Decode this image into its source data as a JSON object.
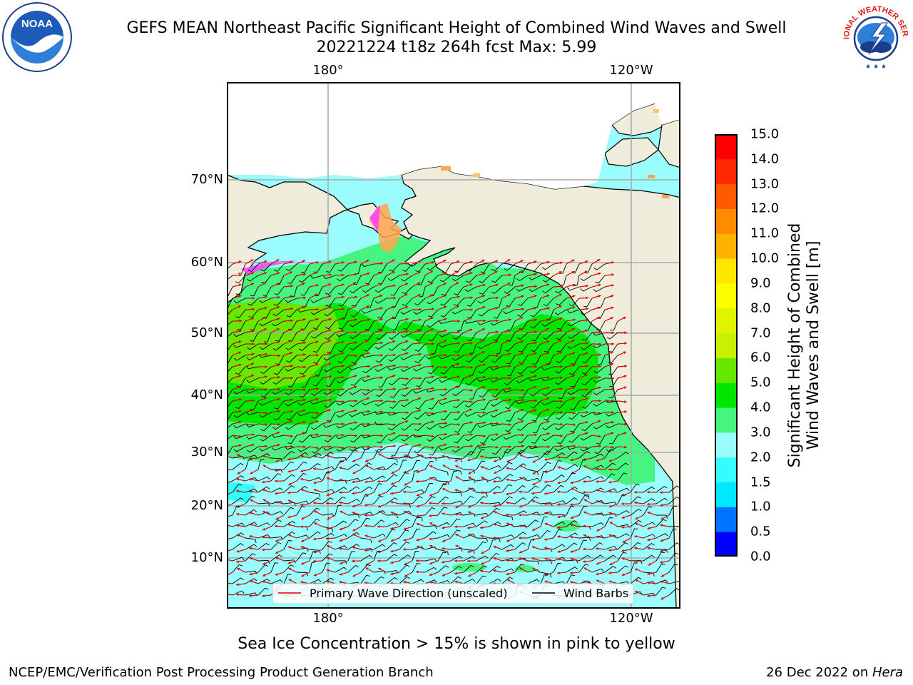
{
  "header": {
    "title_line1": "GEFS MEAN Northeast Pacific Significant Height of Combined Wind Waves and Swell",
    "title_line2": "20221224 t18z 264h fcst   Max: 5.99"
  },
  "logos": {
    "noaa": {
      "icon": "noaa-logo",
      "text": "NOAA"
    },
    "nws": {
      "icon": "nws-logo",
      "text": "NATIONAL WEATHER SERVICE"
    }
  },
  "map": {
    "lon_labels_top": [
      "180°",
      "120°W"
    ],
    "lon_labels_bottom": [
      "180°",
      "120°W"
    ],
    "lat_labels": [
      "70°N",
      "60°N",
      "50°N",
      "40°N",
      "30°N",
      "20°N",
      "10°N"
    ],
    "legend": {
      "wave_label": "Primary Wave Direction (unscaled)",
      "barb_label": "Wind Barbs",
      "wave_color": "#e00000",
      "barb_color": "#000000"
    },
    "land_color": "#efecdc"
  },
  "colorbar": {
    "label_line1": "Significant Height of Combined",
    "label_line2": "Wind Waves and Swell [m]",
    "ticks": [
      "0.0",
      "0.5",
      "1.0",
      "1.5",
      "2.0",
      "3.0",
      "4.0",
      "5.0",
      "6.0",
      "7.0",
      "8.0",
      "9.0",
      "10.0",
      "11.0",
      "12.0",
      "13.0",
      "14.0",
      "15.0"
    ],
    "colors": [
      "#0000ff",
      "#0073ff",
      "#00e8ff",
      "#35fdfd",
      "#9afcfc",
      "#46f57f",
      "#00e600",
      "#66e800",
      "#c8f000",
      "#e0f400",
      "#fdfd00",
      "#ffe500",
      "#ffb300",
      "#ff8c00",
      "#ff5a00",
      "#ff2800",
      "#ff0000"
    ]
  },
  "footnote": "Sea Ice Concentration > 15% is shown in pink to yellow",
  "footer": {
    "left": "NCEP/EMC/Verification Post Processing Product Generation Branch",
    "date": "26 Dec 2022 on ",
    "host": "Hera"
  }
}
